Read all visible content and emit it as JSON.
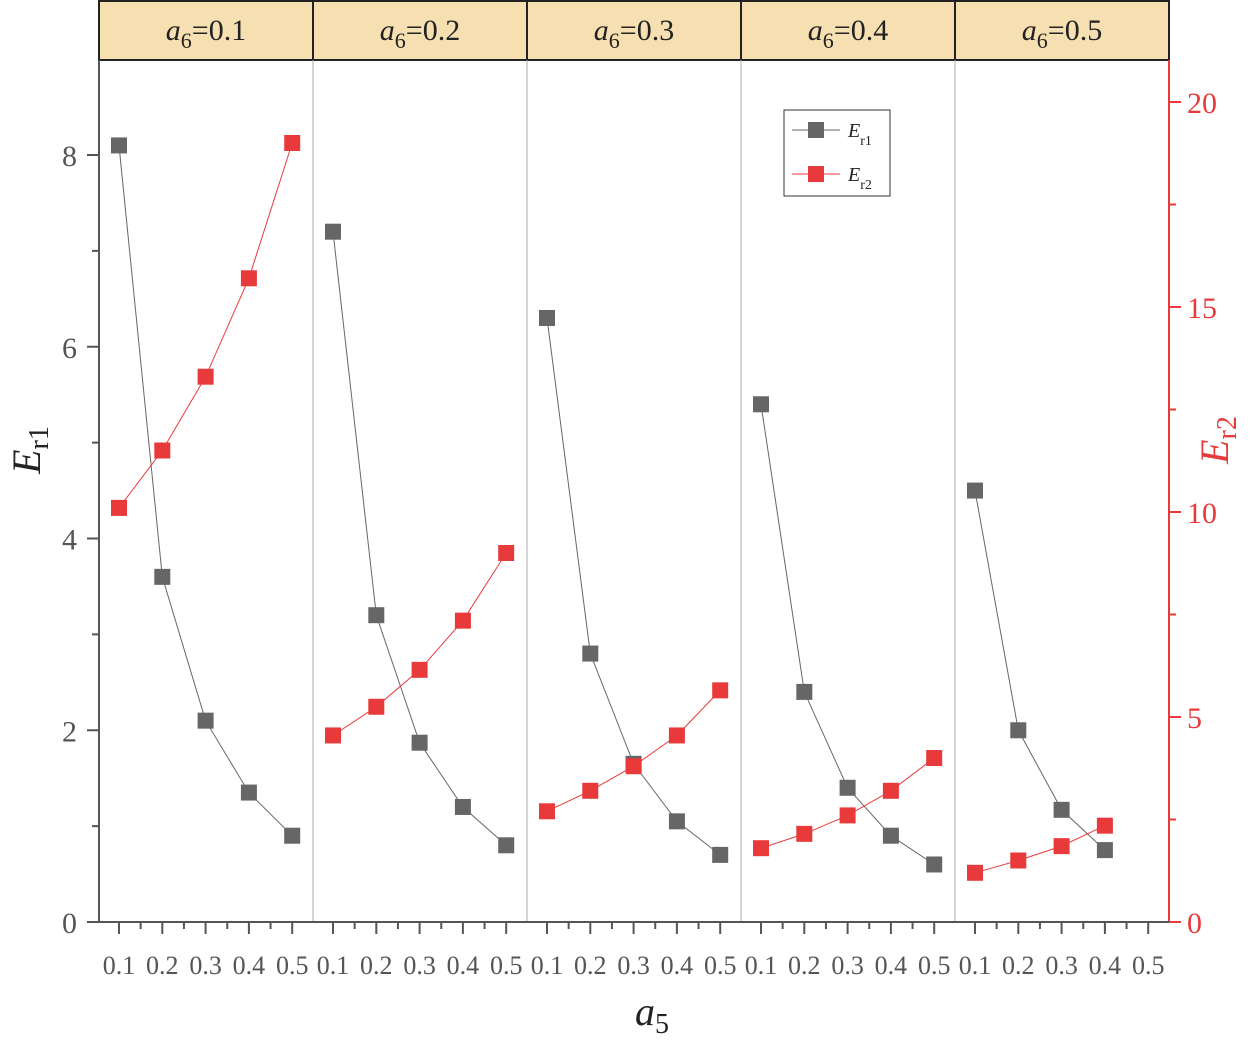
{
  "chart_data": {
    "type": "line",
    "panels": [
      {
        "label_var": "a",
        "label_sub": "6",
        "label_val": "=0.1",
        "x": [
          0.1,
          0.2,
          0.3,
          0.4,
          0.5
        ],
        "er1": [
          8.1,
          3.6,
          2.1,
          1.35,
          0.9
        ],
        "er2": [
          10.1,
          11.5,
          13.3,
          15.7,
          19.0
        ]
      },
      {
        "label_var": "a",
        "label_sub": "6",
        "label_val": "=0.2",
        "x": [
          0.1,
          0.2,
          0.3,
          0.4,
          0.5
        ],
        "er1": [
          7.2,
          3.2,
          1.87,
          1.2,
          0.8
        ],
        "er2": [
          4.55,
          5.25,
          6.15,
          7.35,
          9.0
        ]
      },
      {
        "label_var": "a",
        "label_sub": "6",
        "label_val": "=0.3",
        "x": [
          0.1,
          0.2,
          0.3,
          0.4,
          0.5
        ],
        "er1": [
          6.3,
          2.8,
          1.65,
          1.05,
          0.7
        ],
        "er2": [
          2.7,
          3.2,
          3.8,
          4.55,
          5.65
        ]
      },
      {
        "label_var": "a",
        "label_sub": "6",
        "label_val": "=0.4",
        "x": [
          0.1,
          0.2,
          0.3,
          0.4,
          0.5
        ],
        "er1": [
          5.4,
          2.4,
          1.4,
          0.9,
          0.6
        ],
        "er2": [
          1.8,
          2.15,
          2.6,
          3.2,
          4.0
        ]
      },
      {
        "label_var": "a",
        "label_sub": "6",
        "label_val": "=0.5",
        "x": [
          0.1,
          0.2,
          0.3,
          0.4
        ],
        "er1": [
          4.5,
          2.0,
          1.17,
          0.75
        ],
        "er2": [
          1.2,
          1.5,
          1.85,
          2.35
        ]
      }
    ],
    "x_tick_labels": [
      [
        "0.1",
        "0.2",
        "0.3",
        "0.4",
        "0.5"
      ],
      [
        "0.1",
        "0.2",
        "0.3",
        "0.4",
        "0.5"
      ],
      [
        "0.1",
        "0.2",
        "0.3",
        "0.4",
        "0.5"
      ],
      [
        "0.1",
        "0.2",
        "0.3",
        "0.4",
        "0.5"
      ],
      [
        "0.1",
        "0.2",
        "0.3",
        "0.4",
        "0.5"
      ]
    ],
    "left_axis": {
      "var": "E",
      "sub": "r1",
      "ylim": [
        0,
        9
      ],
      "ticks": [
        "0",
        "2",
        "4",
        "6",
        "8"
      ],
      "tick_values": [
        0,
        2,
        4,
        6,
        8
      ]
    },
    "right_axis": {
      "var": "E",
      "sub": "r2",
      "ylim": [
        0,
        21
      ],
      "ticks": [
        "0",
        "5",
        "10",
        "15",
        "20"
      ],
      "tick_values": [
        0,
        5,
        10,
        15,
        20
      ]
    },
    "xlabel": {
      "var": "a",
      "sub": "5"
    },
    "legend": [
      {
        "var": "E",
        "sub": "r1",
        "series": "er1"
      },
      {
        "var": "E",
        "sub": "r2",
        "series": "er2"
      }
    ],
    "legend_position": "top-right of panel 4",
    "colors": {
      "er1": "#666666",
      "er2": "#e83a3a",
      "header_bg": "#f6dfb0",
      "axis": "#555555",
      "right_axis": "#e83a3a"
    }
  }
}
